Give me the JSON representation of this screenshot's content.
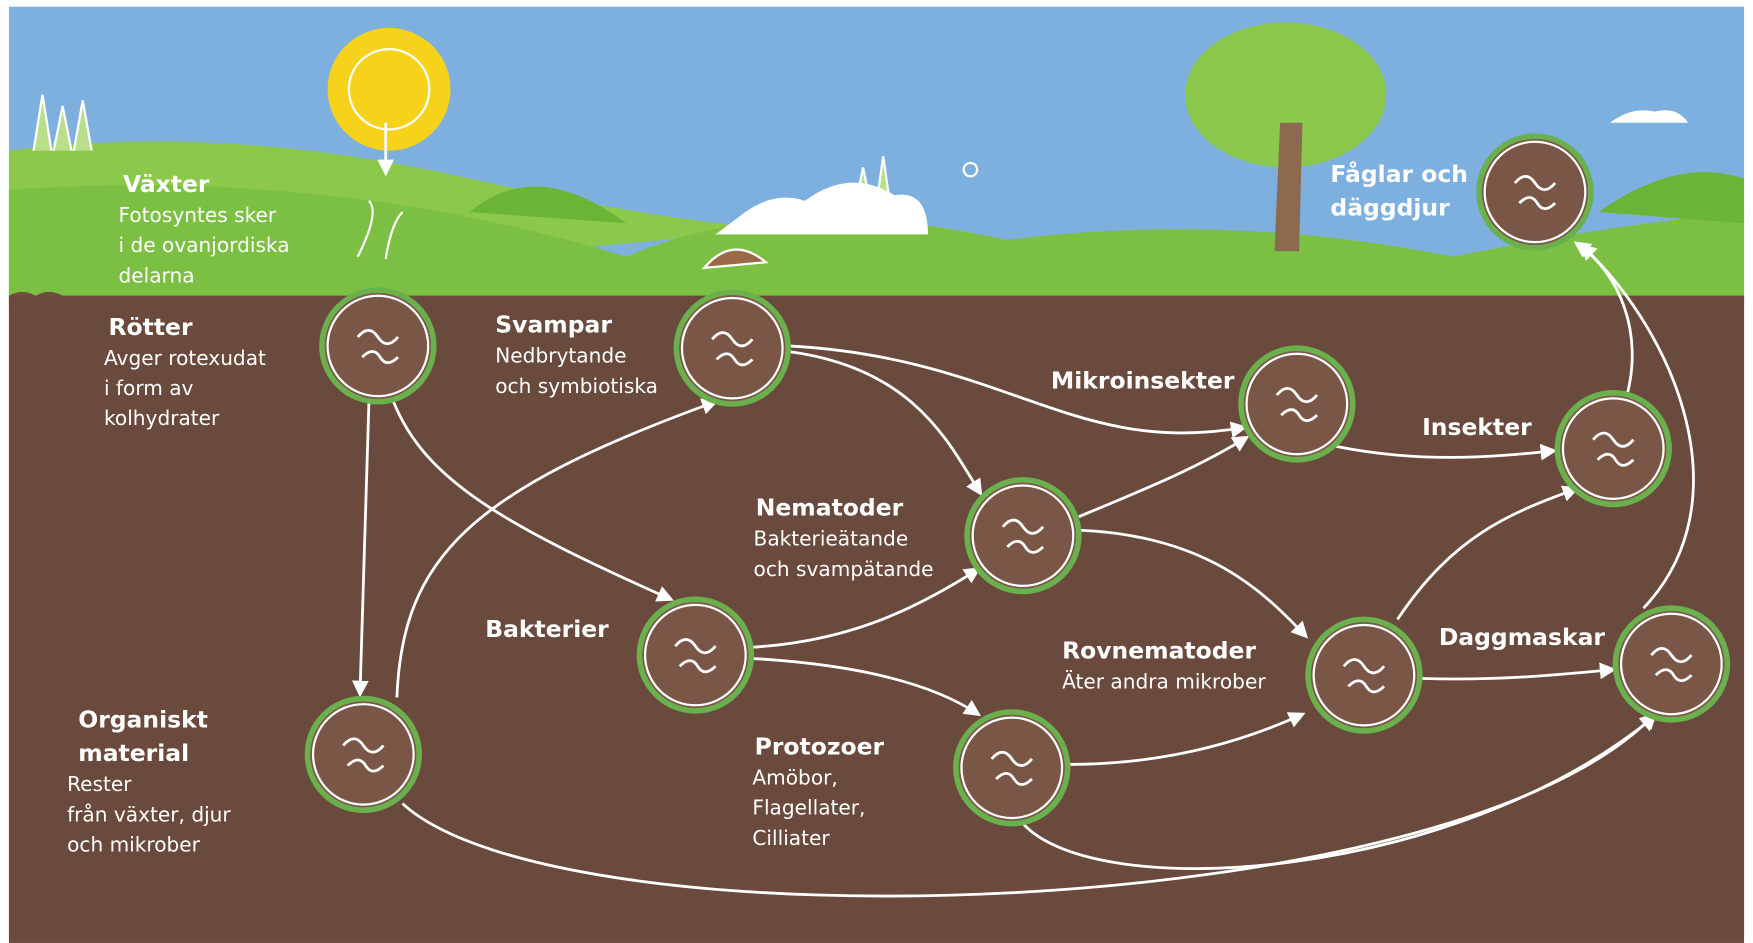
{
  "nodes": [
    {
      "title": [
        "Växter"
      ],
      "text": [
        "Fotosyntes sker",
        "i de ovanjordiska",
        "delarna"
      ]
    },
    {
      "title": [
        "Rötter"
      ],
      "text": [
        "Avger rotexudat",
        "i form av",
        "kolhydrater"
      ]
    },
    {
      "title": [
        "Svampar"
      ],
      "text": [
        "Nedbrytande",
        "och symbiotiska"
      ]
    },
    {
      "title": [
        "Mikroinsekter"
      ],
      "text": []
    },
    {
      "title": [
        "Insekter"
      ],
      "text": []
    },
    {
      "title": [
        "Fåglar och",
        "däggdjur"
      ],
      "text": []
    },
    {
      "title": [
        "Nematoder"
      ],
      "text": [
        "Bakterieätande",
        "och svampätande"
      ]
    },
    {
      "title": [
        "Bakterier"
      ],
      "text": []
    },
    {
      "title": [
        "Organiskt",
        "material"
      ],
      "text": [
        "Rester",
        "från växter, djur",
        "och mikrober"
      ]
    },
    {
      "title": [
        "Protozoer"
      ],
      "text": [
        "Amöbor,",
        "Flagellater,",
        "Cilliater"
      ]
    },
    {
      "title": [
        "Rovnematoder"
      ],
      "text": [
        "Äter andra mikrober"
      ]
    },
    {
      "title": [
        "Daggmaskar"
      ],
      "text": []
    }
  ]
}
